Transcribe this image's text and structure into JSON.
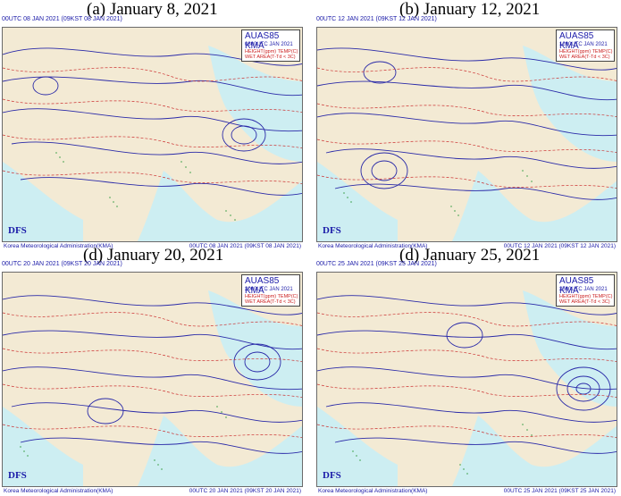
{
  "organization": "Korea Meteorological Administration(KMA)",
  "dfs_label": "DFS",
  "panels": [
    {
      "caption": "(a) January 8, 2021",
      "header": "00UTC 08 JAN 2021  (09KST 08 JAN 2021)",
      "footer_right": "00UTC 08 JAN 2021  (09KST 08 JAN 2021)",
      "info": {
        "title": "AUAS85 KMA",
        "time": "0800UTC JAN 2021",
        "line1": "HEIGHT(gpm)  TEMP(C)",
        "line2": "WET AREA(T-Td < 3C)"
      }
    },
    {
      "caption": "(b) January 12, 2021",
      "header": "00UTC 12 JAN 2021  (09KST 12 JAN 2021)",
      "footer_right": "00UTC 12 JAN 2021  (09KST 12 JAN 2021)",
      "info": {
        "title": "AUAS85 KMA",
        "time": "1200UTC JAN 2021",
        "line1": "HEIGHT(gpm)  TEMP(C)",
        "line2": "WET AREA(T-Td < 3C)"
      }
    },
    {
      "caption": "(d) January 20, 2021",
      "header": "00UTC 20 JAN 2021  (09KST 20 JAN 2021)",
      "footer_right": "00UTC 20 JAN 2021  (09KST 20 JAN 2021)",
      "info": {
        "title": "AUAS85 KMA",
        "time": "2000UTC JAN 2021",
        "line1": "HEIGHT(gpm)  TEMP(C)",
        "line2": "WET AREA(T-Td < 3C)"
      }
    },
    {
      "caption": "(d) January 25, 2021",
      "header": "00UTC 25 JAN 2021  (09KST 25 JAN 2021)",
      "footer_right": "00UTC 25 JAN 2021  (09KST 25 JAN 2021)",
      "info": {
        "title": "AUAS85 KMA",
        "time": "2500UTC JAN 2021",
        "line1": "HEIGHT(gpm)  TEMP(C)",
        "line2": "WET AREA(T-Td < 3C)"
      }
    }
  ],
  "colors": {
    "land": "#f3ead4",
    "sea": "#cdeef2",
    "height_contour": "#2a2aa8",
    "temp_contour": "#cc3333",
    "wet_area": "#2e9a3a",
    "text": "#1a1aa8"
  }
}
